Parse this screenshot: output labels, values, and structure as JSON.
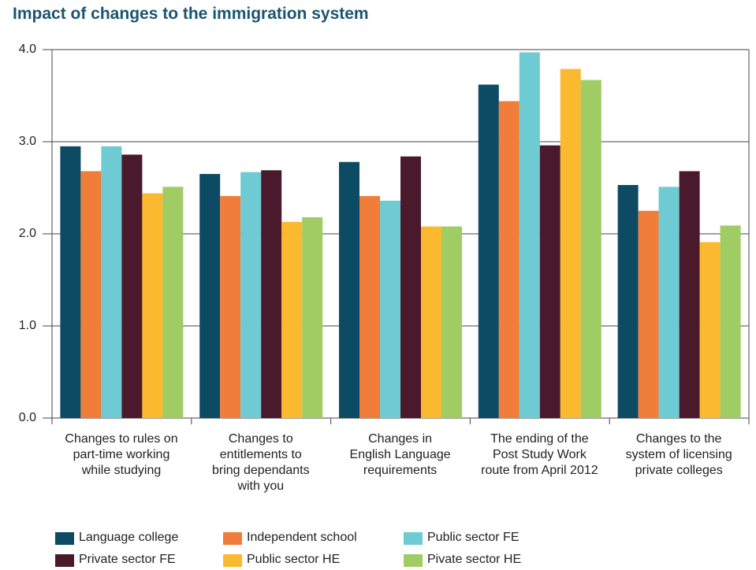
{
  "chart_data": {
    "type": "bar",
    "title": "Impact of changes to the immigration system",
    "categories": [
      "Changes to rules on\npart-time working\nwhile studying",
      "Changes to\nentitlements to\nbring dependants\nwith you",
      "Changes in\nEnglish Language\nrequirements",
      "The ending of the\nPost Study Work\nroute from April 2012",
      "Changes to the\nsystem of licensing\nprivate colleges"
    ],
    "series": [
      {
        "name": "Language college",
        "color": "#0d4a63",
        "values": [
          2.95,
          2.65,
          2.78,
          3.62,
          2.53
        ]
      },
      {
        "name": "Independent school",
        "color": "#f07d39",
        "values": [
          2.68,
          2.41,
          2.41,
          3.44,
          2.25
        ]
      },
      {
        "name": "Public sector FE",
        "color": "#6ecbd3",
        "values": [
          2.95,
          2.67,
          2.36,
          3.97,
          2.51
        ]
      },
      {
        "name": "Private sector FE",
        "color": "#4a1a2c",
        "values": [
          2.86,
          2.69,
          2.84,
          2.96,
          2.68
        ]
      },
      {
        "name": "Public sector HE",
        "color": "#fbb92f",
        "values": [
          2.44,
          2.13,
          2.08,
          3.79,
          1.91
        ]
      },
      {
        "name": "Pivate sector HE",
        "color": "#9fcd64",
        "values": [
          2.51,
          2.18,
          2.08,
          3.67,
          2.09
        ]
      }
    ],
    "ylim": [
      0,
      4
    ],
    "yticks": [
      {
        "value": 0,
        "label": "0.0"
      },
      {
        "value": 1,
        "label": "1.0"
      },
      {
        "value": 2,
        "label": "2.0"
      },
      {
        "value": 3,
        "label": "3.0"
      },
      {
        "value": 4,
        "label": "4.0"
      }
    ],
    "grid": true
  }
}
